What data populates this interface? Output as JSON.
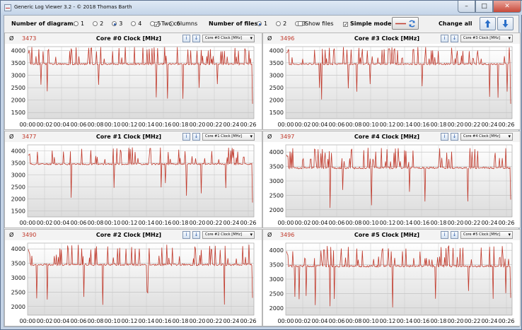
{
  "window": {
    "title": "Generic Log Viewer 3.2 - © 2018 Thomas Barth",
    "min_glyph": "–",
    "max_glyph": "□",
    "close_glyph": "✕"
  },
  "toolbar": {
    "diagrams_label": "Number of diagrams",
    "diagram_options": [
      "1",
      "2",
      "3",
      "4",
      "5",
      "6"
    ],
    "diagram_selected": "3",
    "two_columns_label": "Two columns",
    "two_columns_checked": true,
    "files_label": "Number of files",
    "file_options": [
      "1",
      "2",
      "3"
    ],
    "file_selected": "1",
    "show_files_label": "Show files",
    "show_files_checked": false,
    "simple_mode_label": "Simple mode",
    "simple_mode_checked": true,
    "change_all_label": "Change all",
    "line_color": "#c0392b"
  },
  "panels": [
    {
      "avg_symbol": "Ø",
      "avg": "3473",
      "title": "Core #0 Clock [MHz]",
      "dropdown": "Core #0 Clock [MHz]",
      "yticks": [
        1500,
        2000,
        2500,
        3000,
        3500,
        4000
      ],
      "ymin": 1250,
      "ymax": 4150,
      "seed": 3
    },
    {
      "avg_symbol": "Ø",
      "avg": "3496",
      "title": "Core #3 Clock [MHz]",
      "dropdown": "Core #3 Clock [MHz]",
      "yticks": [
        1500,
        2000,
        2500,
        3000,
        3500,
        4000
      ],
      "ymin": 1250,
      "ymax": 4150,
      "seed": 7
    },
    {
      "avg_symbol": "Ø",
      "avg": "3477",
      "title": "Core #1 Clock [MHz]",
      "dropdown": "Core #1 Clock [MHz]",
      "yticks": [
        1500,
        2000,
        2500,
        3000,
        3500,
        4000
      ],
      "ymin": 1250,
      "ymax": 4250,
      "seed": 11
    },
    {
      "avg_symbol": "Ø",
      "avg": "3497",
      "title": "Core #4 Clock [MHz]",
      "dropdown": "Core #4 Clock [MHz]",
      "yticks": [
        2000,
        2500,
        3000,
        3500,
        4000
      ],
      "ymin": 1750,
      "ymax": 4250,
      "seed": 13
    },
    {
      "avg_symbol": "Ø",
      "avg": "3490",
      "title": "Core #2 Clock [MHz]",
      "dropdown": "Core #2 Clock [MHz]",
      "yticks": [
        2000,
        2500,
        3000,
        3500,
        4000
      ],
      "ymin": 1700,
      "ymax": 4200,
      "seed": 17
    },
    {
      "avg_symbol": "Ø",
      "avg": "3496",
      "title": "Core #5 Clock [MHz]",
      "dropdown": "Core #5 Clock [MHz]",
      "yticks": [
        2000,
        2500,
        3000,
        3500,
        4000
      ],
      "ymin": 1750,
      "ymax": 4250,
      "seed": 19
    }
  ],
  "xticks": [
    "00:00",
    "00:02",
    "00:04",
    "00:06",
    "00:08",
    "00:10",
    "00:12",
    "00:14",
    "00:16",
    "00:18",
    "00:20",
    "00:22",
    "00:24",
    "00:26"
  ]
}
